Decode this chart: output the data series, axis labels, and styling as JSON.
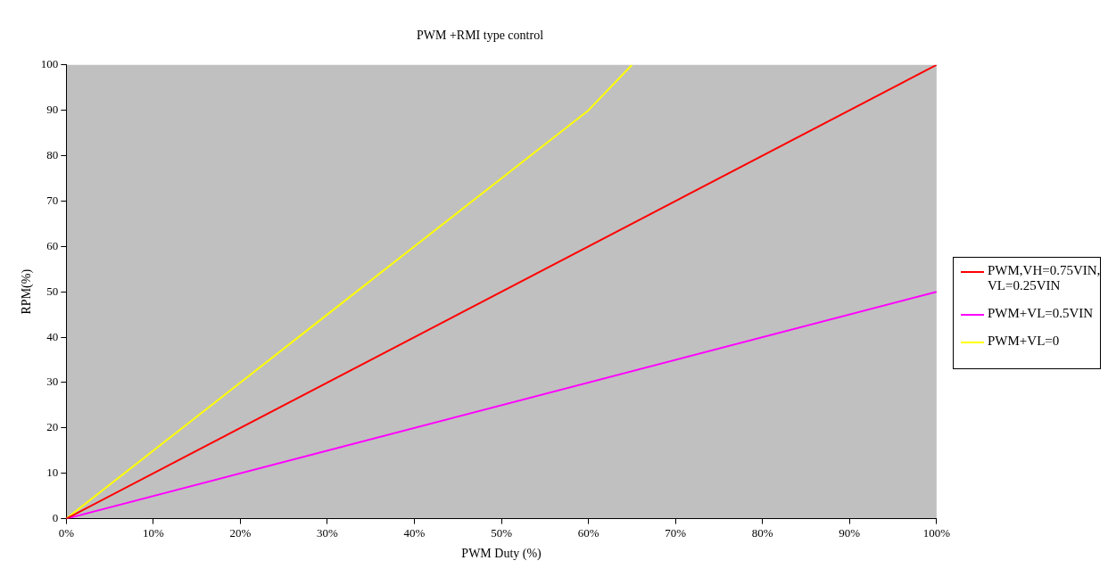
{
  "chart_data": {
    "type": "line",
    "title": "PWM +RMI type control",
    "xlabel": "PWM Duty (%)",
    "ylabel": "RPM(%)",
    "xlim": [
      0,
      100
    ],
    "ylim": [
      0,
      100
    ],
    "xticks": [
      {
        "value": 0,
        "label": "0%"
      },
      {
        "value": 10,
        "label": "10%"
      },
      {
        "value": 20,
        "label": "20%"
      },
      {
        "value": 30,
        "label": "30%"
      },
      {
        "value": 40,
        "label": "40%"
      },
      {
        "value": 50,
        "label": "50%"
      },
      {
        "value": 60,
        "label": "60%"
      },
      {
        "value": 70,
        "label": "70%"
      },
      {
        "value": 80,
        "label": "80%"
      },
      {
        "value": 90,
        "label": "90%"
      },
      {
        "value": 100,
        "label": "100%"
      }
    ],
    "yticks": [
      0,
      10,
      20,
      30,
      40,
      50,
      60,
      70,
      80,
      90,
      100
    ],
    "grid": false,
    "legend": "right",
    "marker": "none",
    "line_style": "solid",
    "series": [
      {
        "name": "PWM,VH=0.75VIN, VL=0.25VIN",
        "color": "#ff0000",
        "x": [
          0,
          100
        ],
        "values": [
          0,
          100
        ]
      },
      {
        "name": "PWM+VL=0.5VIN",
        "color": "#ff00ff",
        "x": [
          0,
          100
        ],
        "values": [
          0,
          50
        ]
      },
      {
        "name": "PWM+VL=0",
        "color": "#ffff00",
        "x": [
          0,
          10,
          20,
          30,
          40,
          50,
          60,
          65
        ],
        "values": [
          0,
          15,
          30,
          45,
          60,
          75,
          90,
          100
        ]
      }
    ]
  }
}
